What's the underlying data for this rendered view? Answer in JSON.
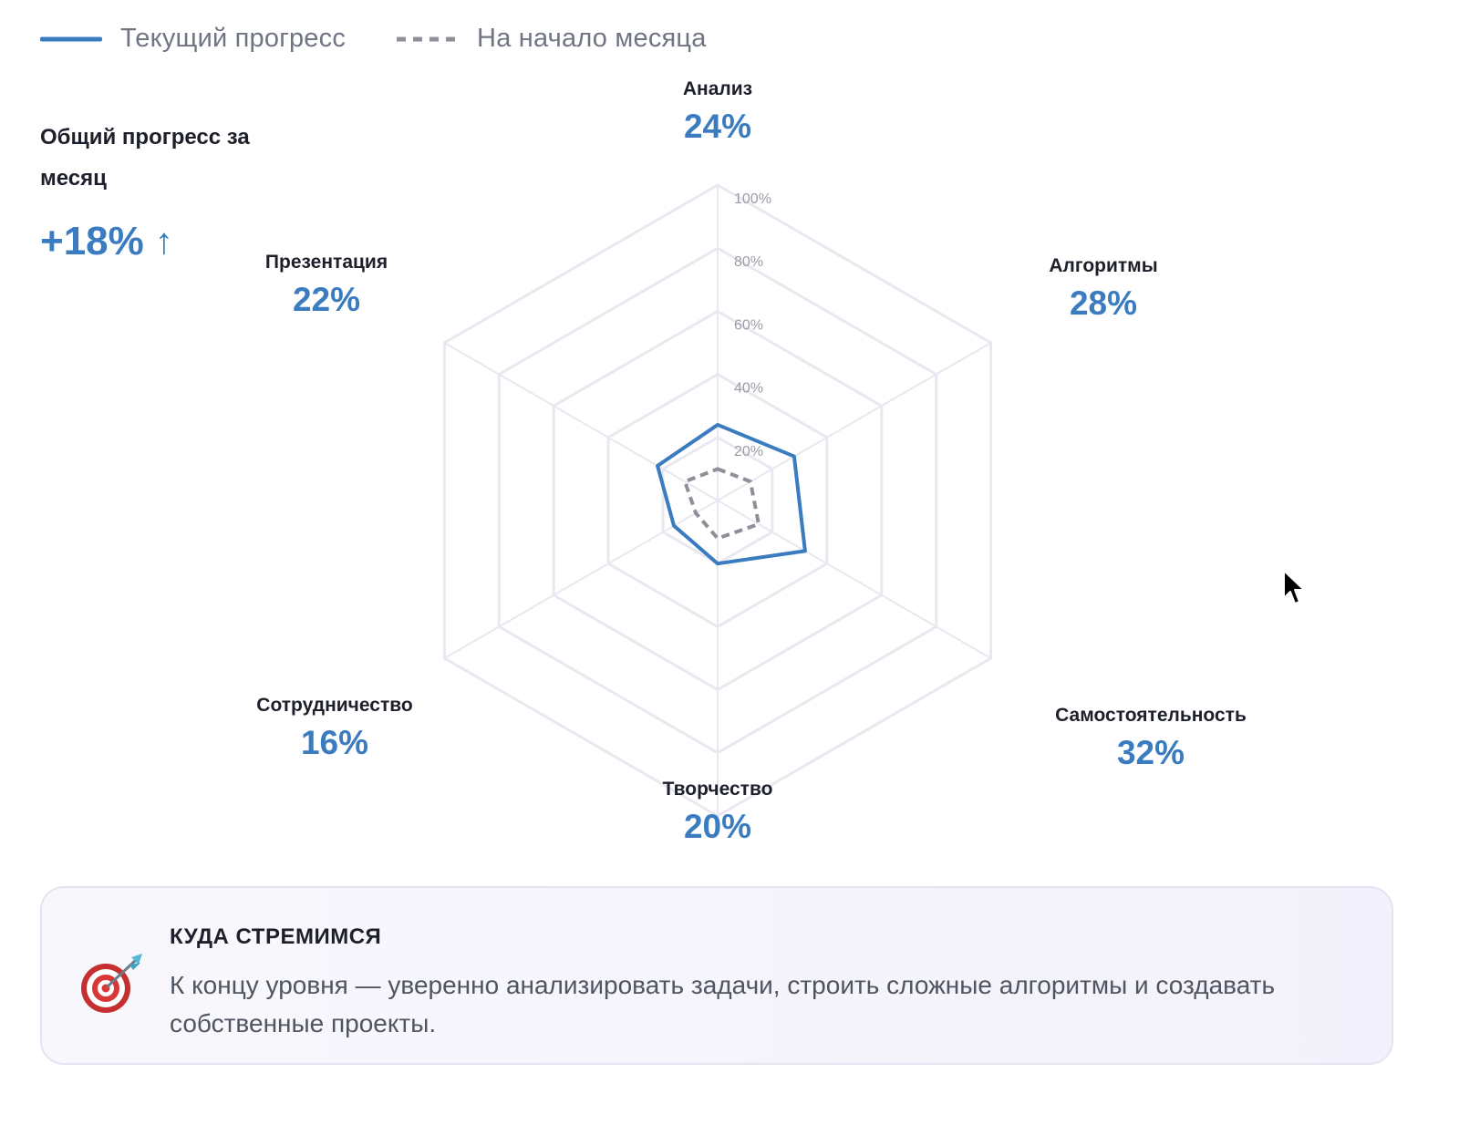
{
  "legend": {
    "current_label": "Текущий прогресс",
    "start_label": "На начало месяца"
  },
  "overall": {
    "title": "Общий прогресс за месяц",
    "value": "+18%",
    "arrow": "↑"
  },
  "colors": {
    "accent": "#3a7cbf",
    "baseline": "#8d8f99",
    "grid": "#e8e9f0"
  },
  "chart_data": {
    "type": "radar",
    "axes": [
      "Анализ",
      "Алгоритмы",
      "Самостоятельность",
      "Творчество",
      "Сотрудничество",
      "Презентация"
    ],
    "value_labels": [
      "24%",
      "28%",
      "32%",
      "20%",
      "16%",
      "22%"
    ],
    "rlim": [
      0,
      100
    ],
    "ticks": [
      20,
      40,
      60,
      80,
      100
    ],
    "tick_labels": [
      "20%",
      "40%",
      "60%",
      "80%",
      "100%"
    ],
    "series": [
      {
        "name": "Текущий прогресс",
        "values": [
          24,
          28,
          32,
          20,
          16,
          22
        ],
        "style": "solid"
      },
      {
        "name": "На начало месяца",
        "values": [
          10,
          12,
          15,
          12,
          8,
          12
        ],
        "style": "dashed"
      }
    ],
    "grid": true,
    "legend_position": "top-left"
  },
  "goal": {
    "icon": "target-dart-icon",
    "title": "КУДА СТРЕМИМСЯ",
    "text": "К концу уровня — уверенно анализировать задачи, строить сложные алгоритмы и создавать собственные проекты."
  }
}
